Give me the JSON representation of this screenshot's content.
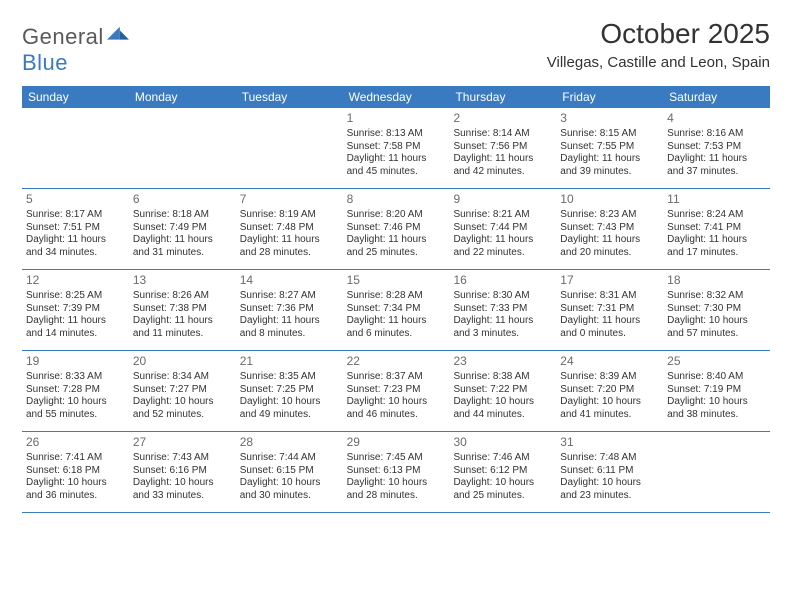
{
  "logo": {
    "text1": "General",
    "text2": "Blue"
  },
  "title": "October 2025",
  "location": "Villegas, Castille and Leon, Spain",
  "colors": {
    "header_bg": "#3a7ac0",
    "header_fg": "#ffffff",
    "rule": "#3a7ac0",
    "text": "#333333",
    "daynum": "#6b6b6b",
    "logo_gray": "#5a5a5a",
    "logo_blue": "#3a7ac0",
    "page_bg": "#ffffff"
  },
  "weekdays": [
    "Sunday",
    "Monday",
    "Tuesday",
    "Wednesday",
    "Thursday",
    "Friday",
    "Saturday"
  ],
  "weeks": [
    [
      {
        "num": "",
        "lines": []
      },
      {
        "num": "",
        "lines": []
      },
      {
        "num": "",
        "lines": []
      },
      {
        "num": "1",
        "lines": [
          "Sunrise: 8:13 AM",
          "Sunset: 7:58 PM",
          "Daylight: 11 hours",
          "and 45 minutes."
        ]
      },
      {
        "num": "2",
        "lines": [
          "Sunrise: 8:14 AM",
          "Sunset: 7:56 PM",
          "Daylight: 11 hours",
          "and 42 minutes."
        ]
      },
      {
        "num": "3",
        "lines": [
          "Sunrise: 8:15 AM",
          "Sunset: 7:55 PM",
          "Daylight: 11 hours",
          "and 39 minutes."
        ]
      },
      {
        "num": "4",
        "lines": [
          "Sunrise: 8:16 AM",
          "Sunset: 7:53 PM",
          "Daylight: 11 hours",
          "and 37 minutes."
        ]
      }
    ],
    [
      {
        "num": "5",
        "lines": [
          "Sunrise: 8:17 AM",
          "Sunset: 7:51 PM",
          "Daylight: 11 hours",
          "and 34 minutes."
        ]
      },
      {
        "num": "6",
        "lines": [
          "Sunrise: 8:18 AM",
          "Sunset: 7:49 PM",
          "Daylight: 11 hours",
          "and 31 minutes."
        ]
      },
      {
        "num": "7",
        "lines": [
          "Sunrise: 8:19 AM",
          "Sunset: 7:48 PM",
          "Daylight: 11 hours",
          "and 28 minutes."
        ]
      },
      {
        "num": "8",
        "lines": [
          "Sunrise: 8:20 AM",
          "Sunset: 7:46 PM",
          "Daylight: 11 hours",
          "and 25 minutes."
        ]
      },
      {
        "num": "9",
        "lines": [
          "Sunrise: 8:21 AM",
          "Sunset: 7:44 PM",
          "Daylight: 11 hours",
          "and 22 minutes."
        ]
      },
      {
        "num": "10",
        "lines": [
          "Sunrise: 8:23 AM",
          "Sunset: 7:43 PM",
          "Daylight: 11 hours",
          "and 20 minutes."
        ]
      },
      {
        "num": "11",
        "lines": [
          "Sunrise: 8:24 AM",
          "Sunset: 7:41 PM",
          "Daylight: 11 hours",
          "and 17 minutes."
        ]
      }
    ],
    [
      {
        "num": "12",
        "lines": [
          "Sunrise: 8:25 AM",
          "Sunset: 7:39 PM",
          "Daylight: 11 hours",
          "and 14 minutes."
        ]
      },
      {
        "num": "13",
        "lines": [
          "Sunrise: 8:26 AM",
          "Sunset: 7:38 PM",
          "Daylight: 11 hours",
          "and 11 minutes."
        ]
      },
      {
        "num": "14",
        "lines": [
          "Sunrise: 8:27 AM",
          "Sunset: 7:36 PM",
          "Daylight: 11 hours",
          "and 8 minutes."
        ]
      },
      {
        "num": "15",
        "lines": [
          "Sunrise: 8:28 AM",
          "Sunset: 7:34 PM",
          "Daylight: 11 hours",
          "and 6 minutes."
        ]
      },
      {
        "num": "16",
        "lines": [
          "Sunrise: 8:30 AM",
          "Sunset: 7:33 PM",
          "Daylight: 11 hours",
          "and 3 minutes."
        ]
      },
      {
        "num": "17",
        "lines": [
          "Sunrise: 8:31 AM",
          "Sunset: 7:31 PM",
          "Daylight: 11 hours",
          "and 0 minutes."
        ]
      },
      {
        "num": "18",
        "lines": [
          "Sunrise: 8:32 AM",
          "Sunset: 7:30 PM",
          "Daylight: 10 hours",
          "and 57 minutes."
        ]
      }
    ],
    [
      {
        "num": "19",
        "lines": [
          "Sunrise: 8:33 AM",
          "Sunset: 7:28 PM",
          "Daylight: 10 hours",
          "and 55 minutes."
        ]
      },
      {
        "num": "20",
        "lines": [
          "Sunrise: 8:34 AM",
          "Sunset: 7:27 PM",
          "Daylight: 10 hours",
          "and 52 minutes."
        ]
      },
      {
        "num": "21",
        "lines": [
          "Sunrise: 8:35 AM",
          "Sunset: 7:25 PM",
          "Daylight: 10 hours",
          "and 49 minutes."
        ]
      },
      {
        "num": "22",
        "lines": [
          "Sunrise: 8:37 AM",
          "Sunset: 7:23 PM",
          "Daylight: 10 hours",
          "and 46 minutes."
        ]
      },
      {
        "num": "23",
        "lines": [
          "Sunrise: 8:38 AM",
          "Sunset: 7:22 PM",
          "Daylight: 10 hours",
          "and 44 minutes."
        ]
      },
      {
        "num": "24",
        "lines": [
          "Sunrise: 8:39 AM",
          "Sunset: 7:20 PM",
          "Daylight: 10 hours",
          "and 41 minutes."
        ]
      },
      {
        "num": "25",
        "lines": [
          "Sunrise: 8:40 AM",
          "Sunset: 7:19 PM",
          "Daylight: 10 hours",
          "and 38 minutes."
        ]
      }
    ],
    [
      {
        "num": "26",
        "lines": [
          "Sunrise: 7:41 AM",
          "Sunset: 6:18 PM",
          "Daylight: 10 hours",
          "and 36 minutes."
        ]
      },
      {
        "num": "27",
        "lines": [
          "Sunrise: 7:43 AM",
          "Sunset: 6:16 PM",
          "Daylight: 10 hours",
          "and 33 minutes."
        ]
      },
      {
        "num": "28",
        "lines": [
          "Sunrise: 7:44 AM",
          "Sunset: 6:15 PM",
          "Daylight: 10 hours",
          "and 30 minutes."
        ]
      },
      {
        "num": "29",
        "lines": [
          "Sunrise: 7:45 AM",
          "Sunset: 6:13 PM",
          "Daylight: 10 hours",
          "and 28 minutes."
        ]
      },
      {
        "num": "30",
        "lines": [
          "Sunrise: 7:46 AM",
          "Sunset: 6:12 PM",
          "Daylight: 10 hours",
          "and 25 minutes."
        ]
      },
      {
        "num": "31",
        "lines": [
          "Sunrise: 7:48 AM",
          "Sunset: 6:11 PM",
          "Daylight: 10 hours",
          "and 23 minutes."
        ]
      },
      {
        "num": "",
        "lines": []
      }
    ]
  ]
}
